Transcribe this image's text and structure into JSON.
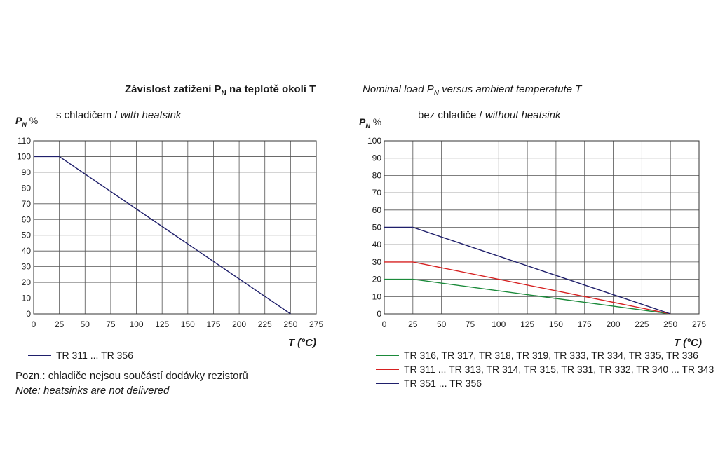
{
  "header": {
    "title_cz_main": "Závislost zatížení  P",
    "title_cz_sub": "N",
    "title_cz_tail": " na teplotě okolí  T",
    "title_en_main": "Nominal load P",
    "title_en_sub": "N",
    "title_en_tail": " versus ambient temperatute T"
  },
  "left_panel": {
    "subtitle_cz": "s chladičem / ",
    "subtitle_en": "with heatsink",
    "ylabel_p": "P",
    "ylabel_sub": "N",
    "ylabel_unit": " %"
  },
  "right_panel": {
    "subtitle_cz": "bez chladiče / ",
    "subtitle_en": "without heatsink",
    "ylabel_p": "P",
    "ylabel_sub": "N",
    "ylabel_unit": " %"
  },
  "notes": {
    "line_cz": "Pozn.: chladiče nejsou součástí dodávky rezistorů",
    "line_en": "Note: heatsinks are not delivered"
  },
  "chart_data": [
    {
      "type": "line",
      "xlabel": "T (°C)",
      "ylabel": "PN %",
      "xlim": [
        0,
        275
      ],
      "ylim": [
        0,
        110
      ],
      "xticks": [
        0,
        25,
        50,
        75,
        100,
        125,
        150,
        175,
        200,
        225,
        250,
        275
      ],
      "yticks": [
        0,
        10,
        20,
        30,
        40,
        50,
        60,
        70,
        80,
        90,
        100,
        110
      ],
      "grid": true,
      "legend_position": "bottom-left",
      "series": [
        {
          "name": "TR 311 ... TR 356",
          "color": "#1f1f6b",
          "x": [
            0,
            25,
            250
          ],
          "y": [
            100,
            100,
            0
          ]
        }
      ]
    },
    {
      "type": "line",
      "xlabel": "T (°C)",
      "ylabel": "PN %",
      "xlim": [
        0,
        275
      ],
      "ylim": [
        0,
        100
      ],
      "xticks": [
        0,
        25,
        50,
        75,
        100,
        125,
        150,
        175,
        200,
        225,
        250,
        275
      ],
      "yticks": [
        0,
        10,
        20,
        30,
        40,
        50,
        60,
        70,
        80,
        90,
        100
      ],
      "grid": true,
      "legend_position": "bottom-left",
      "series": [
        {
          "name": "TR 316, TR 317, TR 318, TR 319, TR 333, TR 334, TR 335, TR 336",
          "color": "#1b8a3a",
          "x": [
            0,
            25,
            250
          ],
          "y": [
            20,
            20,
            0
          ]
        },
        {
          "name": "TR 311 ... TR 313, TR 314, TR 315, TR 331, TR 332, TR 340 ... TR 343",
          "color": "#d62020",
          "x": [
            0,
            25,
            250
          ],
          "y": [
            30,
            30,
            0
          ]
        },
        {
          "name": "TR 351 ... TR 356",
          "color": "#1f1f6b",
          "x": [
            0,
            25,
            250
          ],
          "y": [
            50,
            50,
            0
          ]
        }
      ]
    }
  ]
}
